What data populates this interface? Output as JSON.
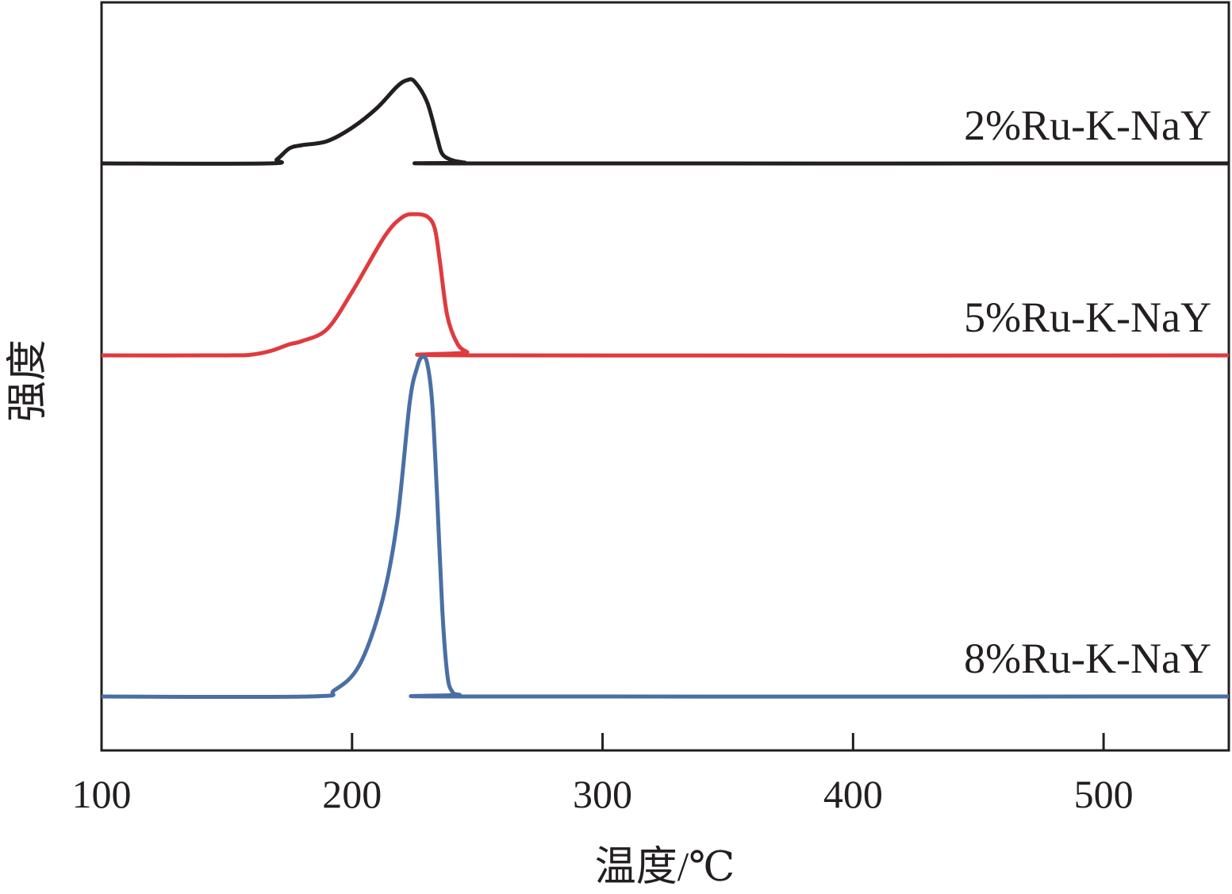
{
  "chart_data": {
    "type": "line",
    "title": "",
    "xlabel": "温度/℃",
    "ylabel": "强度",
    "xlim": [
      100,
      550
    ],
    "x_ticks": [
      100,
      200,
      300,
      400,
      500
    ],
    "y_ticks": [],
    "grid": false,
    "legend": "inline-right",
    "series": [
      {
        "name": "2%Ru-K-NaY",
        "color": "#231f20",
        "offset": 740,
        "x": [
          100,
          166,
          170,
          175,
          180,
          190,
          200,
          210,
          218,
          222,
          225,
          230,
          234,
          236,
          240,
          245,
          248,
          550
        ],
        "y": [
          0,
          0,
          5,
          19,
          23,
          28,
          45,
          70,
          97,
          105,
          103,
          77,
          32,
          12,
          4,
          1,
          0,
          0
        ]
      },
      {
        "name": "5%Ru-K-NaY",
        "color": "#e03a3e",
        "offset": 498,
        "x": [
          100,
          150,
          160,
          168,
          175,
          180,
          190,
          200,
          213,
          220,
          225,
          230,
          233,
          235,
          238,
          242,
          246,
          249,
          550
        ],
        "y": [
          0,
          0,
          1,
          6,
          14,
          18,
          33,
          80,
          150,
          174,
          178,
          175,
          160,
          120,
          50,
          15,
          4,
          0,
          0
        ]
      },
      {
        "name": "8%Ru-K-NaY",
        "color": "#4a6fa5",
        "offset": 68,
        "x": [
          100,
          183,
          193,
          203,
          212,
          218,
          223,
          226,
          228,
          230,
          232,
          234,
          236,
          238,
          240,
          243,
          247,
          550
        ],
        "y": [
          0,
          0,
          8,
          40,
          120,
          220,
          370,
          415,
          428,
          420,
          370,
          250,
          110,
          28,
          6,
          2,
          0,
          0
        ]
      }
    ]
  }
}
